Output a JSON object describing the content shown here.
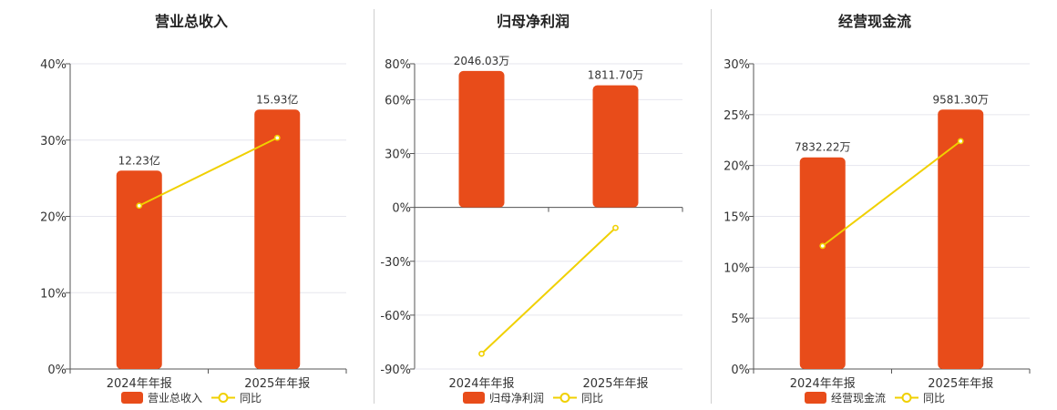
{
  "colors": {
    "bar": "#e84c1a",
    "line": "#f0d000",
    "grid": "#e6e6ee",
    "axis": "#555555"
  },
  "chart_data": [
    {
      "type": "bar",
      "title": "营业总收入",
      "categories": [
        "2024年年报",
        "2025年年报"
      ],
      "bar_series": {
        "name": "营业总收入",
        "labels": [
          "12.23亿",
          "15.93亿"
        ]
      },
      "line_series": {
        "name": "同比",
        "values": [
          21.4,
          30.3
        ]
      },
      "y_axis": {
        "ticks": [
          0,
          10,
          20,
          30,
          40
        ],
        "tick_labels": [
          "0%",
          "10%",
          "20%",
          "30%",
          "40%"
        ],
        "ylim": [
          0,
          40
        ]
      },
      "bar_tops": [
        26,
        34
      ],
      "legend": "bottom"
    },
    {
      "type": "bar",
      "title": "归母净利润",
      "categories": [
        "2024年年报",
        "2025年年报"
      ],
      "bar_series": {
        "name": "归母净利润",
        "labels": [
          "2046.03万",
          "1811.70万"
        ]
      },
      "line_series": {
        "name": "同比",
        "values": [
          -81.5,
          -11.4
        ]
      },
      "y_axis": {
        "ticks": [
          -90,
          -60,
          -30,
          0,
          30,
          60,
          80
        ],
        "tick_labels": [
          "-90%",
          "-60%",
          "-30%",
          "0%",
          "30%",
          "60%",
          "80%"
        ],
        "ylim": [
          -90,
          80
        ]
      },
      "bar_tops": [
        76,
        68
      ],
      "legend": "bottom"
    },
    {
      "type": "bar",
      "title": "经营现金流",
      "categories": [
        "2024年年报",
        "2025年年报"
      ],
      "bar_series": {
        "name": "经营现金流",
        "labels": [
          "7832.22万",
          "9581.30万"
        ]
      },
      "line_series": {
        "name": "同比",
        "values": [
          12.1,
          22.4
        ]
      },
      "y_axis": {
        "ticks": [
          0,
          5,
          10,
          15,
          20,
          25,
          30
        ],
        "tick_labels": [
          "0%",
          "5%",
          "10%",
          "15%",
          "20%",
          "25%",
          "30%"
        ],
        "ylim": [
          0,
          30
        ]
      },
      "bar_tops": [
        20.8,
        25.5
      ],
      "legend": "bottom"
    }
  ]
}
